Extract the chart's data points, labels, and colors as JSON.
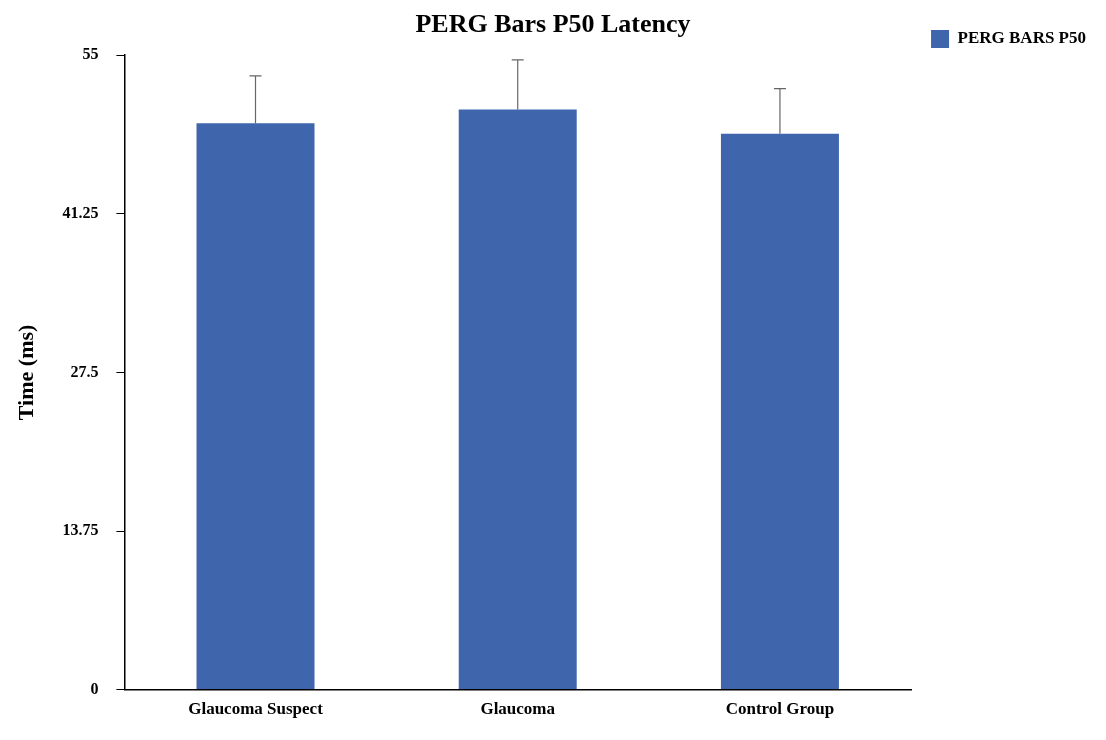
{
  "chart_data": {
    "type": "bar",
    "title": "PERG Bars P50 Latency",
    "ylabel": "Time (ms)",
    "categories": [
      "Glaucoma Suspect",
      "Glaucoma",
      "Control Group"
    ],
    "series": [
      {
        "name": "PERG BARS P50",
        "color": "#3f65ad",
        "values": [
          49.1,
          50.3,
          48.2
        ],
        "errors": [
          [
            49.1,
            53.2
          ],
          [
            50.3,
            54.6
          ],
          [
            48.2,
            52.1
          ]
        ]
      }
    ],
    "ylim": [
      0,
      55
    ],
    "yticks": [
      0,
      13.75,
      27.5,
      41.25,
      55
    ],
    "grid": false,
    "legend": "top right"
  }
}
